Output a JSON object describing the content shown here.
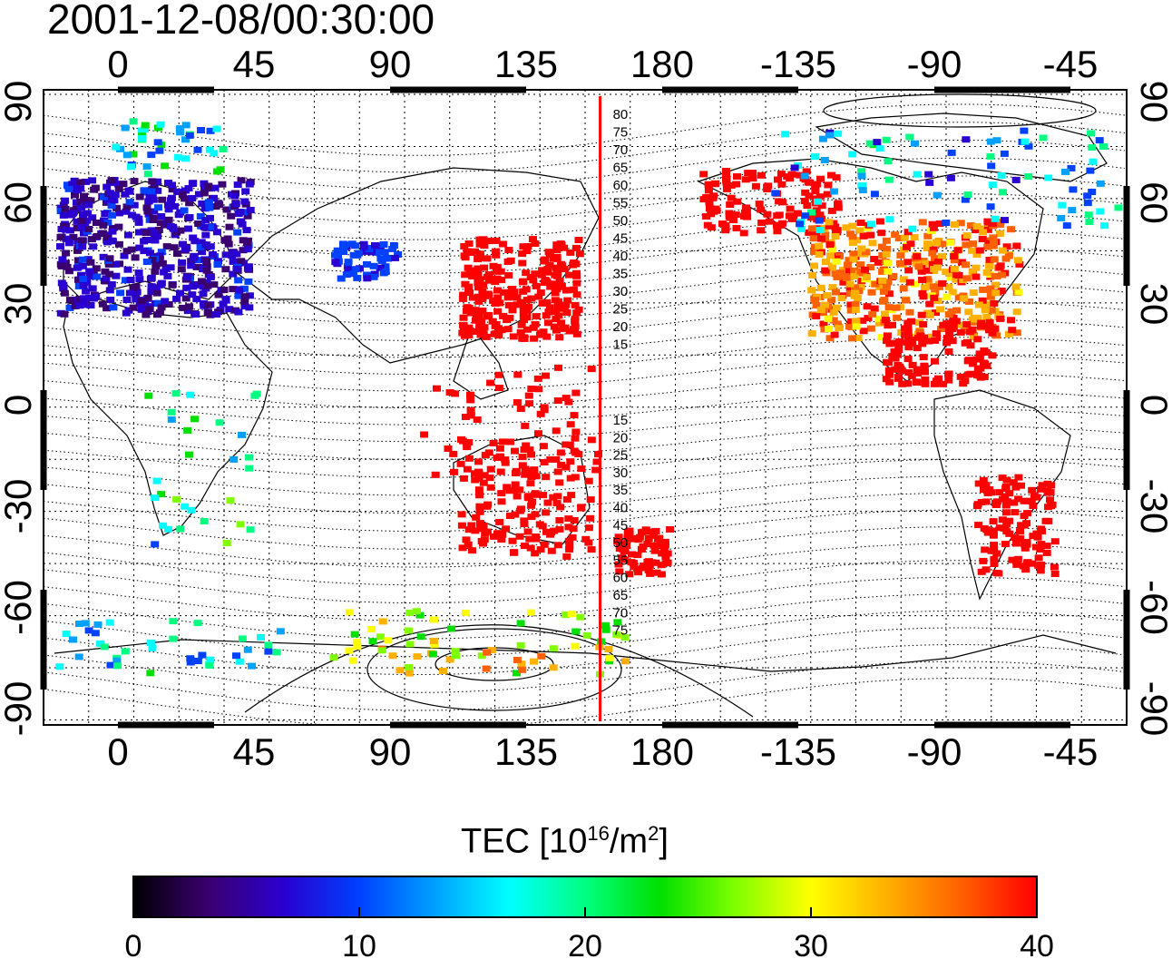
{
  "title": "2001-12-08/00:30:00",
  "map": {
    "top_lon_labels": [
      "0",
      "45",
      "90",
      "135",
      "180",
      "-135",
      "-90",
      "-45"
    ],
    "bottom_lon_labels": [
      "0",
      "45",
      "90",
      "135",
      "180",
      "-135",
      "-90",
      "-45"
    ],
    "left_lat_labels": [
      "90",
      "60",
      "30",
      "0",
      "-30",
      "-60",
      "-90"
    ],
    "right_lat_labels": [
      "90",
      "60",
      "30",
      "0",
      "-30",
      "-60",
      "-90"
    ],
    "north_contour_labels": [
      "80",
      "75",
      "70",
      "65",
      "60",
      "55",
      "50",
      "45",
      "40",
      "35",
      "30",
      "25",
      "20",
      "15"
    ],
    "south_contour_labels": [
      "15",
      "20",
      "25",
      "30",
      "35",
      "40",
      "45",
      "50",
      "55",
      "60",
      "65",
      "70",
      "75"
    ],
    "terminator_lon": 170,
    "terminator_color": "#ff0000"
  },
  "colorbar": {
    "label_main": "TEC  [10",
    "label_sup1": "16",
    "label_mid": "/m",
    "label_sup2": "2",
    "label_end": "]",
    "ticks": [
      "0",
      "10",
      "20",
      "30",
      "40"
    ],
    "min": 0,
    "max": 40,
    "colors": [
      "#000000",
      "#3a0070",
      "#2a00d0",
      "#0040ff",
      "#00a0ff",
      "#00ffff",
      "#00ff80",
      "#00e000",
      "#80ff00",
      "#ffff00",
      "#ffb000",
      "#ff6000",
      "#ff0000"
    ]
  }
}
